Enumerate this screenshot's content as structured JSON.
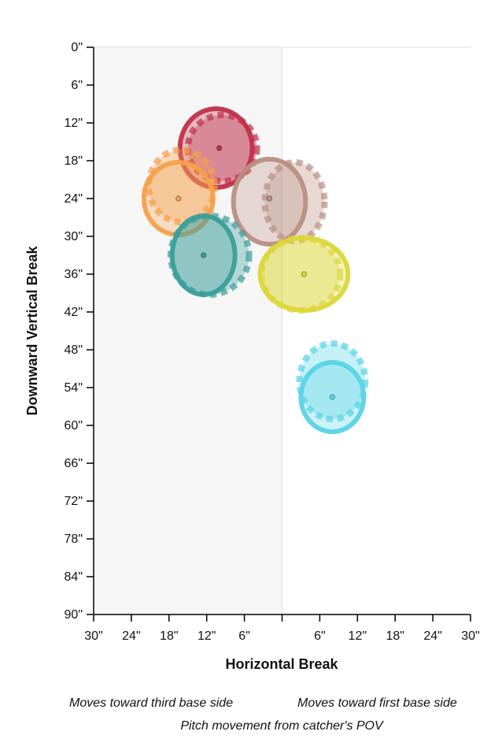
{
  "chart_data": {
    "type": "scatter",
    "xlabel": "Horizontal Break",
    "ylabel": "Downward Vertical Break",
    "xlim": [
      -30,
      30
    ],
    "ylim": [
      0,
      90
    ],
    "x_ticks": [
      -30,
      -24,
      -18,
      -12,
      -6,
      0,
      6,
      12,
      18,
      24,
      30
    ],
    "x_tick_labels": [
      "30\"",
      "24\"",
      "18\"",
      "12\"",
      "6\"",
      "",
      "6\"",
      "12\"",
      "18\"",
      "24\"",
      "30\""
    ],
    "y_ticks": [
      0,
      6,
      12,
      18,
      24,
      30,
      36,
      42,
      48,
      54,
      60,
      66,
      72,
      78,
      84,
      90
    ],
    "y_tick_labels": [
      "0\"",
      "6\"",
      "12\"",
      "18\"",
      "24\"",
      "30\"",
      "36\"",
      "42\"",
      "48\"",
      "54\"",
      "60\"",
      "66\"",
      "72\"",
      "78\"",
      "84\"",
      "90\""
    ],
    "shaded_region": {
      "x": [
        -30,
        0
      ],
      "color": "#f6f6f6"
    },
    "series": [
      {
        "color": "#c0304a",
        "solid": {
          "x": -10.5,
          "y": 16,
          "rx": 5.75,
          "ry": 6.25
        },
        "dashed": {
          "x": -9.5,
          "y": 16,
          "rx": 5.5,
          "ry": 5.25
        },
        "center": {
          "x": -10,
          "y": 16
        }
      },
      {
        "color": "#f5a04a",
        "solid": {
          "x": -16.5,
          "y": 24,
          "rx": 5.5,
          "ry": 5.75
        },
        "dashed": {
          "x": -16,
          "y": 22,
          "rx": 5.25,
          "ry": 5.75
        },
        "center": {
          "x": -16.5,
          "y": 24
        }
      },
      {
        "color": "#b98f82",
        "solid": {
          "x": -2,
          "y": 24.5,
          "rx": 5.75,
          "ry": 6.75
        },
        "dashed": {
          "x": 2,
          "y": 24.5,
          "rx": 4.75,
          "ry": 6.25
        },
        "center": {
          "x": -2,
          "y": 24
        }
      },
      {
        "color": "#3a9e9a",
        "solid": {
          "x": -12.5,
          "y": 33,
          "rx": 5.0,
          "ry": 6.25
        },
        "dashed": {
          "x": -11.5,
          "y": 33,
          "rx": 6.25,
          "ry": 6.25
        },
        "center": {
          "x": -12.5,
          "y": 33
        }
      },
      {
        "color": "#dcd63a",
        "solid": {
          "x": 3.5,
          "y": 36,
          "rx": 7.0,
          "ry": 5.75
        },
        "dashed": {
          "x": 3,
          "y": 36,
          "rx": 6.25,
          "ry": 5.75
        },
        "center": {
          "x": 3.5,
          "y": 36
        }
      },
      {
        "color": "#58d3e6",
        "solid": {
          "x": 8,
          "y": 55.5,
          "rx": 5.0,
          "ry": 5.5
        },
        "dashed": {
          "x": 8,
          "y": 53,
          "rx": 5.25,
          "ry": 6.0
        },
        "center": {
          "x": 8,
          "y": 55.5
        }
      }
    ]
  },
  "notes": {
    "left": "Moves toward third base side",
    "right": "Moves toward first base side",
    "bottom": "Pitch movement from catcher's POV"
  }
}
